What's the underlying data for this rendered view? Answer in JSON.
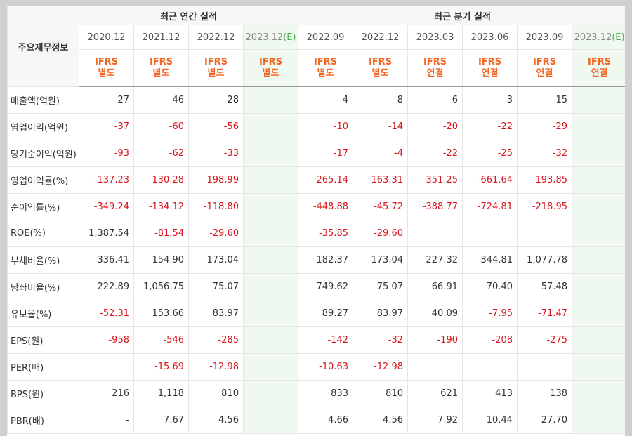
{
  "header": {
    "row_label": "주요재무정보",
    "annual_group": "최근 연간 실적",
    "quarter_group": "최근 분기 실적",
    "estimate_mark": "(E)",
    "annual_periods": [
      {
        "period": "2020.12",
        "std": "IFRS",
        "type": "별도",
        "estimate": false
      },
      {
        "period": "2021.12",
        "std": "IFRS",
        "type": "별도",
        "estimate": false
      },
      {
        "period": "2022.12",
        "std": "IFRS",
        "type": "별도",
        "estimate": false
      },
      {
        "period": "2023.12",
        "std": "IFRS",
        "type": "별도",
        "estimate": true
      }
    ],
    "quarter_periods": [
      {
        "period": "2022.09",
        "std": "IFRS",
        "type": "별도",
        "estimate": false
      },
      {
        "period": "2022.12",
        "std": "IFRS",
        "type": "별도",
        "estimate": false
      },
      {
        "period": "2023.03",
        "std": "IFRS",
        "type": "연결",
        "estimate": false
      },
      {
        "period": "2023.06",
        "std": "IFRS",
        "type": "연결",
        "estimate": false
      },
      {
        "period": "2023.09",
        "std": "IFRS",
        "type": "연결",
        "estimate": false
      },
      {
        "period": "2023.12",
        "std": "IFRS",
        "type": "연결",
        "estimate": true
      }
    ]
  },
  "rows": [
    {
      "label": "매출액(억원)",
      "values": [
        "27",
        "46",
        "28",
        "",
        "4",
        "8",
        "6",
        "3",
        "15",
        ""
      ],
      "sep": false
    },
    {
      "label": "영업이익(억원)",
      "values": [
        "-37",
        "-60",
        "-56",
        "",
        "-10",
        "-14",
        "-20",
        "-22",
        "-29",
        ""
      ],
      "sep": false
    },
    {
      "label": "당기순이익(억원)",
      "values": [
        "-93",
        "-62",
        "-33",
        "",
        "-17",
        "-4",
        "-22",
        "-25",
        "-32",
        ""
      ],
      "sep": false
    },
    {
      "label": "영업이익률(%)",
      "values": [
        "-137.23",
        "-130.28",
        "-198.99",
        "",
        "-265.14",
        "-163.31",
        "-351.25",
        "-661.64",
        "-193.85",
        ""
      ],
      "sep": true
    },
    {
      "label": "순이익률(%)",
      "values": [
        "-349.24",
        "-134.12",
        "-118.80",
        "",
        "-448.88",
        "-45.72",
        "-388.77",
        "-724.81",
        "-218.95",
        ""
      ],
      "sep": false
    },
    {
      "label": "ROE(%)",
      "values": [
        "1,387.54",
        "-81.54",
        "-29.60",
        "",
        "-35.85",
        "-29.60",
        "",
        "",
        "",
        ""
      ],
      "sep": false
    },
    {
      "label": "부채비율(%)",
      "values": [
        "336.41",
        "154.90",
        "173.04",
        "",
        "182.37",
        "173.04",
        "227.32",
        "344.81",
        "1,077.78",
        ""
      ],
      "sep": true
    },
    {
      "label": "당좌비율(%)",
      "values": [
        "222.89",
        "1,056.75",
        "75.07",
        "",
        "749.62",
        "75.07",
        "66.91",
        "70.40",
        "57.48",
        ""
      ],
      "sep": false
    },
    {
      "label": "유보율(%)",
      "values": [
        "-52.31",
        "153.66",
        "83.97",
        "",
        "89.27",
        "83.97",
        "40.09",
        "-7.95",
        "-71.47",
        ""
      ],
      "sep": false
    },
    {
      "label": "EPS(원)",
      "values": [
        "-958",
        "-546",
        "-285",
        "",
        "-142",
        "-32",
        "-190",
        "-208",
        "-275",
        ""
      ],
      "sep": true
    },
    {
      "label": "PER(배)",
      "values": [
        "",
        "-15.69",
        "-12.98",
        "",
        "-10.63",
        "-12.98",
        "",
        "",
        "",
        ""
      ],
      "sep": false
    },
    {
      "label": "BPS(원)",
      "values": [
        "216",
        "1,118",
        "810",
        "",
        "833",
        "810",
        "621",
        "413",
        "138",
        ""
      ],
      "sep": true
    },
    {
      "label": "PBR(배)",
      "values": [
        "-",
        "7.67",
        "4.56",
        "",
        "4.66",
        "4.56",
        "7.92",
        "10.44",
        "27.70",
        ""
      ],
      "sep": false
    }
  ]
}
